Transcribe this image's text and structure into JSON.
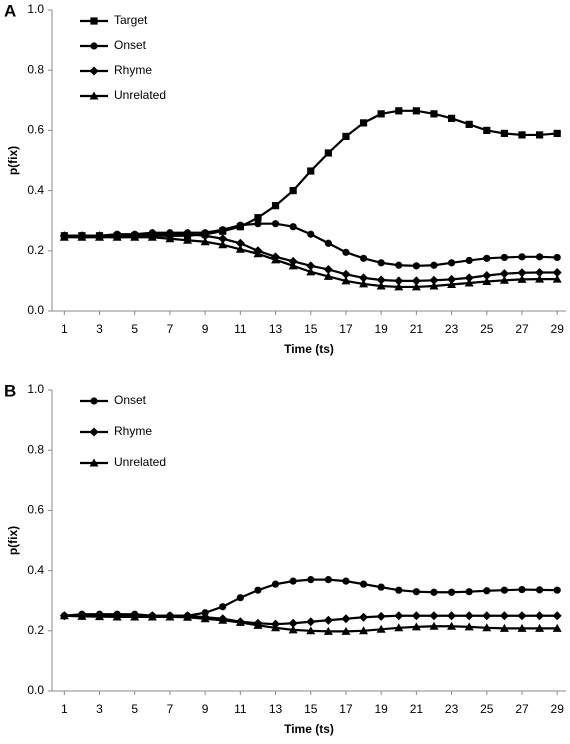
{
  "chart_data": [
    {
      "type": "line",
      "label": "A",
      "ylabel": "p(fix)",
      "xlabel": "Time (ts)",
      "x": [
        1,
        2,
        3,
        4,
        5,
        6,
        7,
        8,
        9,
        10,
        11,
        12,
        13,
        14,
        15,
        16,
        17,
        18,
        19,
        20,
        21,
        22,
        23,
        24,
        25,
        26,
        27,
        28,
        29
      ],
      "xlim": [
        0.3,
        29.5
      ],
      "xticks": [
        1,
        3,
        5,
        7,
        9,
        11,
        13,
        15,
        17,
        19,
        21,
        23,
        25,
        27,
        29
      ],
      "ylim": [
        0,
        1
      ],
      "yticks": [
        {
          "value": 0,
          "label": "0.0"
        },
        0.2,
        0.4,
        0.6,
        0.8,
        {
          "value": 1,
          "label": "1.0"
        }
      ],
      "grid": false,
      "legend": "upper left",
      "series": [
        {
          "name": "Target",
          "color": "#000000",
          "marker": "square",
          "values": [
            0.25,
            0.25,
            0.25,
            0.25,
            0.25,
            0.25,
            0.25,
            0.25,
            0.255,
            0.265,
            0.28,
            0.31,
            0.35,
            0.4,
            0.465,
            0.525,
            0.58,
            0.625,
            0.655,
            0.665,
            0.665,
            0.655,
            0.64,
            0.62,
            0.6,
            0.59,
            0.585,
            0.585,
            0.59
          ]
        },
        {
          "name": "Onset",
          "color": "#000000",
          "marker": "circle",
          "values": [
            0.25,
            0.25,
            0.25,
            0.255,
            0.255,
            0.26,
            0.26,
            0.26,
            0.26,
            0.27,
            0.285,
            0.29,
            0.29,
            0.28,
            0.255,
            0.225,
            0.195,
            0.175,
            0.16,
            0.152,
            0.15,
            0.152,
            0.16,
            0.168,
            0.175,
            0.178,
            0.18,
            0.18,
            0.178
          ]
        },
        {
          "name": "Rhyme",
          "color": "#000000",
          "marker": "diamond",
          "values": [
            0.25,
            0.25,
            0.25,
            0.25,
            0.25,
            0.255,
            0.255,
            0.255,
            0.25,
            0.24,
            0.225,
            0.2,
            0.18,
            0.165,
            0.15,
            0.138,
            0.122,
            0.11,
            0.103,
            0.1,
            0.1,
            0.102,
            0.105,
            0.11,
            0.118,
            0.124,
            0.127,
            0.128,
            0.128
          ]
        },
        {
          "name": "Unrelated",
          "color": "#000000",
          "marker": "triangle",
          "values": [
            0.245,
            0.245,
            0.245,
            0.245,
            0.245,
            0.245,
            0.24,
            0.235,
            0.23,
            0.22,
            0.205,
            0.19,
            0.17,
            0.15,
            0.13,
            0.115,
            0.1,
            0.09,
            0.083,
            0.08,
            0.08,
            0.083,
            0.088,
            0.093,
            0.098,
            0.102,
            0.105,
            0.106,
            0.106
          ]
        }
      ]
    },
    {
      "type": "line",
      "label": "B",
      "ylabel": "p(fix)",
      "xlabel": "Time (ts)",
      "x": [
        1,
        2,
        3,
        4,
        5,
        6,
        7,
        8,
        9,
        10,
        11,
        12,
        13,
        14,
        15,
        16,
        17,
        18,
        19,
        20,
        21,
        22,
        23,
        24,
        25,
        26,
        27,
        28,
        29
      ],
      "xlim": [
        0.3,
        29.5
      ],
      "xticks": [
        1,
        3,
        5,
        7,
        9,
        11,
        13,
        15,
        17,
        19,
        21,
        23,
        25,
        27,
        29
      ],
      "ylim": [
        0,
        1
      ],
      "yticks": [
        {
          "value": 0,
          "label": "0.0"
        },
        0.2,
        0.4,
        0.6,
        0.8,
        {
          "value": 1,
          "label": "1.0"
        }
      ],
      "grid": false,
      "legend": "upper left",
      "series": [
        {
          "name": "Onset",
          "color": "#000000",
          "marker": "circle",
          "values": [
            0.25,
            0.255,
            0.255,
            0.255,
            0.255,
            0.25,
            0.25,
            0.25,
            0.26,
            0.28,
            0.31,
            0.335,
            0.355,
            0.365,
            0.37,
            0.37,
            0.365,
            0.355,
            0.345,
            0.335,
            0.33,
            0.328,
            0.328,
            0.33,
            0.333,
            0.335,
            0.337,
            0.336,
            0.335
          ]
        },
        {
          "name": "Rhyme",
          "color": "#000000",
          "marker": "diamond",
          "values": [
            0.25,
            0.25,
            0.25,
            0.25,
            0.25,
            0.25,
            0.25,
            0.25,
            0.245,
            0.24,
            0.23,
            0.225,
            0.222,
            0.225,
            0.23,
            0.235,
            0.24,
            0.245,
            0.248,
            0.25,
            0.25,
            0.25,
            0.25,
            0.25,
            0.25,
            0.25,
            0.25,
            0.25,
            0.25
          ]
        },
        {
          "name": "Unrelated",
          "color": "#000000",
          "marker": "triangle",
          "values": [
            0.25,
            0.248,
            0.247,
            0.246,
            0.246,
            0.246,
            0.246,
            0.245,
            0.24,
            0.235,
            0.228,
            0.218,
            0.21,
            0.203,
            0.2,
            0.198,
            0.198,
            0.2,
            0.205,
            0.21,
            0.213,
            0.215,
            0.215,
            0.213,
            0.21,
            0.208,
            0.208,
            0.208,
            0.208
          ]
        }
      ]
    }
  ]
}
